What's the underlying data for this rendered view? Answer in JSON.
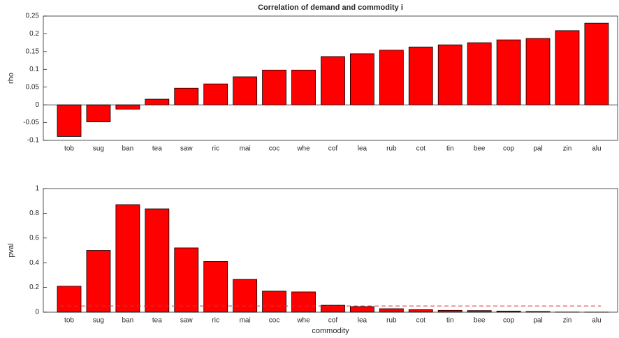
{
  "chart_data": [
    {
      "type": "bar",
      "title": "Correlation of demand and commodity i",
      "ylabel": "rho",
      "categories": [
        "tob",
        "sug",
        "ban",
        "tea",
        "saw",
        "ric",
        "mai",
        "coc",
        "whe",
        "cof",
        "lea",
        "rub",
        "cot",
        "tin",
        "bee",
        "cop",
        "pal",
        "zin",
        "alu"
      ],
      "values": [
        -0.089,
        -0.048,
        -0.012,
        0.016,
        0.047,
        0.059,
        0.079,
        0.098,
        0.098,
        0.136,
        0.144,
        0.154,
        0.163,
        0.169,
        0.175,
        0.183,
        0.187,
        0.209,
        0.23
      ],
      "color": "#ff0000",
      "ylim": [
        -0.1,
        0.25
      ],
      "yticks": [
        -0.1,
        -0.05,
        0,
        0.05,
        0.1,
        0.15,
        0.2,
        0.25
      ]
    },
    {
      "type": "bar",
      "ylabel": "pval",
      "xlabel": "commodity",
      "categories": [
        "tob",
        "sug",
        "ban",
        "tea",
        "saw",
        "ric",
        "mai",
        "coc",
        "whe",
        "cof",
        "lea",
        "rub",
        "cot",
        "tin",
        "bee",
        "cop",
        "pal",
        "zin",
        "alu"
      ],
      "values": [
        0.21,
        0.5,
        0.87,
        0.836,
        0.52,
        0.41,
        0.265,
        0.17,
        0.164,
        0.056,
        0.045,
        0.028,
        0.02,
        0.015,
        0.013,
        0.009,
        0.005,
        0.001,
        0.0005
      ],
      "color": "#ff0000",
      "reference_line": {
        "value": 0.05,
        "color": "#e03030"
      },
      "ylim": [
        0,
        1
      ],
      "yticks": [
        0,
        0.2,
        0.4,
        0.6,
        0.8,
        1
      ]
    }
  ]
}
